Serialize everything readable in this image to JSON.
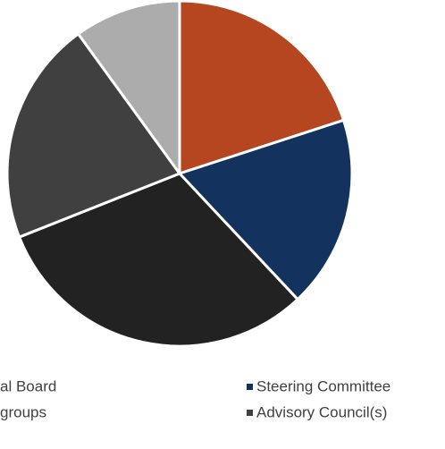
{
  "chart_data": {
    "type": "pie",
    "categories": [
      "al Board",
      "Steering Committee",
      "groups",
      "Advisory Council(s)",
      null
    ],
    "values": [
      20,
      18,
      31,
      21,
      10
    ],
    "colors": [
      "#b5461f",
      "#13335e",
      "#222222",
      "#404040",
      "#acacac"
    ]
  }
}
